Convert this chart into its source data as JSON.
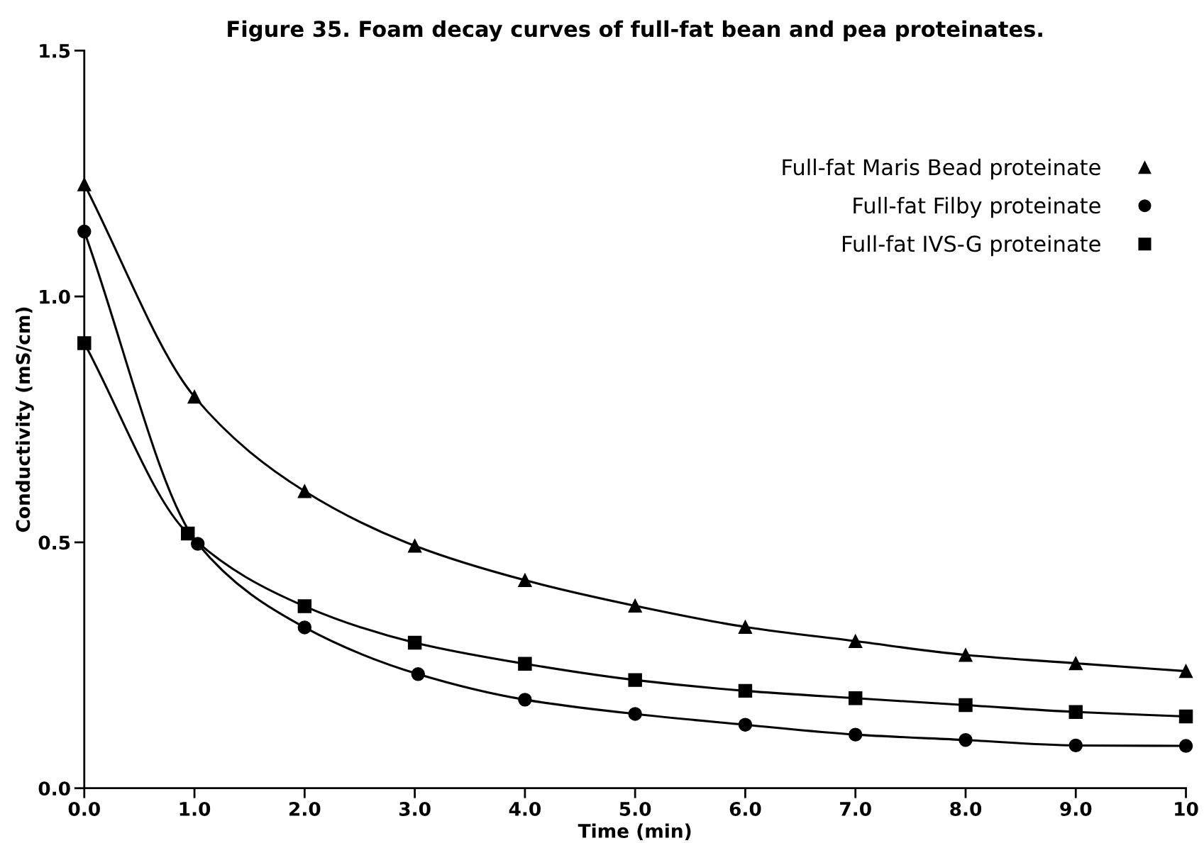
{
  "chart_data": {
    "type": "line",
    "title": "Figure 35. Foam decay curves of full-fat bean and pea proteinates.",
    "xlabel": "Time (min)",
    "ylabel": "Conductivity (mS/cm)",
    "series": [
      {
        "name": "Full-fat Maris Bead proteinate",
        "color": "#000000",
        "marker": "triangle",
        "x": [
          0,
          1,
          2,
          3,
          4,
          5,
          6,
          7,
          8,
          9,
          10
        ],
        "values": [
          1.228,
          0.796,
          0.604,
          0.493,
          0.423,
          0.371,
          0.328,
          0.299,
          0.271,
          0.254,
          0.238
        ]
      },
      {
        "name": "Full-fat Filby proteinate",
        "color": "#000000",
        "marker": "circle",
        "x": [
          0,
          1.03,
          2,
          3.03,
          4,
          5,
          6,
          7,
          8,
          9,
          10
        ],
        "values": [
          1.132,
          0.497,
          0.327,
          0.232,
          0.18,
          0.151,
          0.129,
          0.109,
          0.098,
          0.087,
          0.086
        ]
      },
      {
        "name": "Full-fat IVS-G proteinate",
        "color": "#000000",
        "marker": "square",
        "x": [
          0,
          0.94,
          2,
          3,
          4,
          5,
          6,
          7,
          8,
          9,
          10
        ],
        "values": [
          0.905,
          0.518,
          0.37,
          0.296,
          0.253,
          0.22,
          0.198,
          0.183,
          0.169,
          0.155,
          0.146
        ]
      }
    ],
    "xlim": [
      0,
      10
    ],
    "ylim": [
      0,
      1.5
    ],
    "xticks": [
      {
        "value": 0,
        "label": "0.0"
      },
      {
        "value": 1,
        "label": "1.0"
      },
      {
        "value": 2,
        "label": "2.0"
      },
      {
        "value": 3,
        "label": "3.0"
      },
      {
        "value": 4,
        "label": "4.0"
      },
      {
        "value": 5,
        "label": "5.0"
      },
      {
        "value": 6,
        "label": "6.0"
      },
      {
        "value": 7,
        "label": "7.0"
      },
      {
        "value": 8,
        "label": "8.0"
      },
      {
        "value": 9,
        "label": "9.0"
      },
      10
    ],
    "yticks": [
      {
        "value": 0,
        "label": "0.0"
      },
      {
        "value": 0.5,
        "label": "0.5"
      },
      {
        "value": 1,
        "label": "1.0"
      },
      {
        "value": 1.5,
        "label": "1.5"
      }
    ],
    "grid": false,
    "legend": "top right",
    "line_style": "solid"
  }
}
